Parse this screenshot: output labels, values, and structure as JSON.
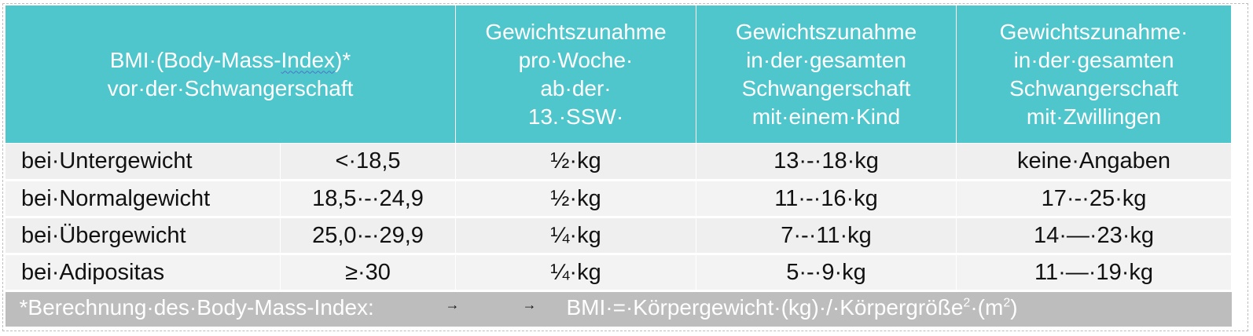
{
  "header": {
    "bmi_line1": "BMI·(Body-Mass-",
    "bmi_index": "Index",
    "bmi_star": ")*",
    "bmi_line2": "vor·der·Schwangerschaft",
    "col_week": [
      "Gewichtszunahme",
      "pro·Woche·",
      "ab·der·",
      "13.·SSW·"
    ],
    "col_single": [
      "Gewichtszunahme",
      "in·der·gesamten",
      "Schwangerschaft",
      "mit·einem·Kind"
    ],
    "col_twins": [
      "Gewichtszunahme·",
      "in·der·gesamten",
      "Schwangerschaft",
      "mit·Zwillingen"
    ]
  },
  "rows": [
    {
      "label": "bei·Untergewicht",
      "bmi": "<·18,5",
      "week": "½·kg",
      "single": "13·-·18·kg",
      "twins": "keine·Angaben"
    },
    {
      "label": "bei·Normalgewicht",
      "bmi": "18,5·-·24,9",
      "week": "½·kg",
      "single": "11·-·16·kg",
      "twins": "17·-·25·kg"
    },
    {
      "label": "bei·Übergewicht",
      "bmi": "25,0·-·29,9",
      "week": "¼·kg",
      "single": "7·-·11·kg",
      "twins": "14·—·23·kg"
    },
    {
      "label": "bei·Adipositas",
      "bmi": "≥·30",
      "week": "¼·kg",
      "single": "5·-·9·kg",
      "twins": "11·—·19·kg"
    }
  ],
  "footer": {
    "note": "*Berechnung·des·Body-Mass-Index:",
    "arrow1": "→",
    "arrow2": "→",
    "formula_main": "BMI·=·Körpergewicht·(kg)·/·Körpergröße",
    "formula_exp1": "2",
    "formula_mid": "·(m",
    "formula_exp2": "2",
    "formula_end": ")"
  },
  "colors": {
    "header_bg": "#4fc6cb",
    "row_bg": "#efefef",
    "footer_bg": "#bdbdbd"
  }
}
